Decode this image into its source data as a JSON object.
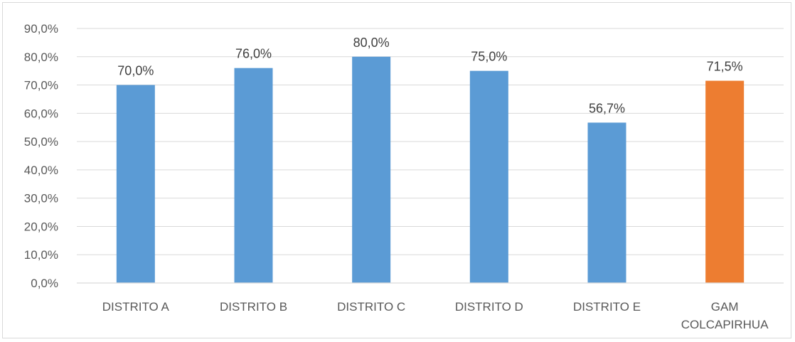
{
  "chart_data": {
    "type": "bar",
    "categories": [
      "DISTRITO A",
      "DISTRITO B",
      "DISTRITO C",
      "DISTRITO D",
      "DISTRITO E",
      "GAM COLCAPIRHUA"
    ],
    "category_lines": [
      [
        "DISTRITO A"
      ],
      [
        "DISTRITO B"
      ],
      [
        "DISTRITO C"
      ],
      [
        "DISTRITO D"
      ],
      [
        "DISTRITO E"
      ],
      [
        "GAM",
        "COLCAPIRHUA"
      ]
    ],
    "values": [
      70.0,
      76.0,
      80.0,
      75.0,
      56.7,
      71.5
    ],
    "data_labels": [
      "70,0%",
      "76,0%",
      "80,0%",
      "75,0%",
      "56,7%",
      "71,5%"
    ],
    "y_ticks": [
      0,
      10,
      20,
      30,
      40,
      50,
      60,
      70,
      80,
      90
    ],
    "y_tick_labels": [
      "0,0%",
      "10,0%",
      "20,0%",
      "30,0%",
      "40,0%",
      "50,0%",
      "60,0%",
      "70,0%",
      "80,0%",
      "90,0%"
    ],
    "ylim": [
      0,
      90
    ],
    "grid": true,
    "legend": "none",
    "colors": [
      "#5b9bd5",
      "#5b9bd5",
      "#5b9bd5",
      "#5b9bd5",
      "#5b9bd5",
      "#ed7d31"
    ],
    "gridline_color": "#d9d9d9"
  }
}
